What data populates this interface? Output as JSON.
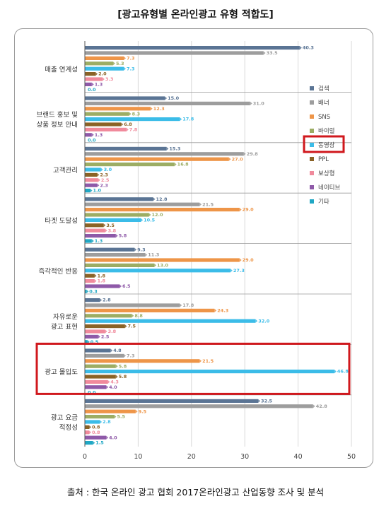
{
  "title": "[광고유형별 온라인광고 유형 적합도]",
  "source": "출처 :  한국 온라인 광고 협회 2017온라인광고 산업동향 조사 및 분석",
  "chart_data": {
    "type": "bar",
    "orientation": "horizontal",
    "xlim": [
      0,
      50
    ],
    "xticks": [
      0,
      10,
      20,
      30,
      40,
      50
    ],
    "categories": [
      [
        "매출 연계성"
      ],
      [
        "브랜드 홍보 및",
        "상품 정보 안내"
      ],
      [
        "고객관리"
      ],
      [
        "타겟 도달성"
      ],
      [
        "즉각적인 반응"
      ],
      [
        "자유로운",
        "광고 표현"
      ],
      [
        "광고 몰입도"
      ],
      [
        "광고 요금",
        "적정성"
      ]
    ],
    "series": [
      {
        "name": "검색",
        "color": "#5a7494",
        "values": [
          40.3,
          15.0,
          15.3,
          12.8,
          9.3,
          2.8,
          4.8,
          32.5
        ]
      },
      {
        "name": "배너",
        "color": "#9d9d9d",
        "values": [
          33.5,
          31.0,
          29.8,
          21.5,
          11.3,
          17.8,
          7.3,
          42.8
        ]
      },
      {
        "name": "SNS",
        "color": "#ee9548",
        "values": [
          7.3,
          12.3,
          27.0,
          29.0,
          29.0,
          24.3,
          21.5,
          9.5
        ]
      },
      {
        "name": "바이럴",
        "color": "#9cad64",
        "values": [
          5.3,
          8.3,
          16.8,
          12.0,
          13.0,
          8.8,
          5.8,
          5.5
        ]
      },
      {
        "name": "동영상",
        "color": "#3bbce8",
        "values": [
          7.3,
          17.8,
          3.0,
          10.5,
          27.3,
          32.0,
          46.8,
          2.8
        ]
      },
      {
        "name": "PPL",
        "color": "#8a6226",
        "values": [
          2.0,
          6.8,
          2.3,
          3.5,
          1.8,
          7.5,
          5.8,
          0.8
        ]
      },
      {
        "name": "보상형",
        "color": "#f08a9c",
        "values": [
          3.3,
          7.8,
          2.5,
          3.8,
          1.8,
          3.8,
          4.3,
          0.8
        ]
      },
      {
        "name": "네이티브",
        "color": "#8e59a8",
        "values": [
          1.3,
          1.3,
          2.3,
          5.8,
          6.5,
          2.5,
          4.0,
          4.0
        ]
      },
      {
        "name": "기타",
        "color": "#1fa7c4",
        "values": [
          0.0,
          0.0,
          1.0,
          1.3,
          0.3,
          0.5,
          0.0,
          1.5
        ]
      }
    ],
    "highlight_category": "광고 몰입도",
    "highlight_legend": "동영상",
    "highlight_color": "#d0181d",
    "legend_position": "right",
    "grid": "vertical"
  }
}
